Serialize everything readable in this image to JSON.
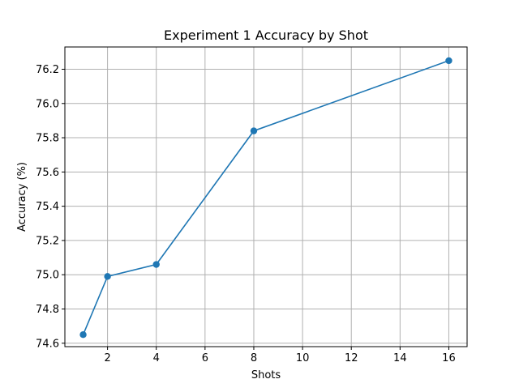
{
  "chart_data": {
    "type": "line",
    "title": "Experiment 1 Accuracy by Shot",
    "xlabel": "Shots",
    "ylabel": "Accuracy (%)",
    "xlim": [
      0.25,
      16.75
    ],
    "ylim": [
      74.58,
      76.33
    ],
    "xticks": [
      2,
      4,
      6,
      8,
      10,
      12,
      14,
      16
    ],
    "xtick_labels": [
      "2",
      "4",
      "6",
      "8",
      "10",
      "12",
      "14",
      "16"
    ],
    "yticks": [
      74.6,
      74.8,
      75.0,
      75.2,
      75.4,
      75.6,
      75.8,
      76.0,
      76.2
    ],
    "ytick_labels": [
      "74.6",
      "74.8",
      "75.0",
      "75.2",
      "75.4",
      "75.6",
      "75.8",
      "76.0",
      "76.2"
    ],
    "grid": true,
    "series": [
      {
        "x": [
          1,
          2,
          4,
          8,
          16
        ],
        "y": [
          74.65,
          74.99,
          75.06,
          75.84,
          76.25
        ],
        "color": "#1f77b4",
        "marker": "circle"
      }
    ]
  }
}
